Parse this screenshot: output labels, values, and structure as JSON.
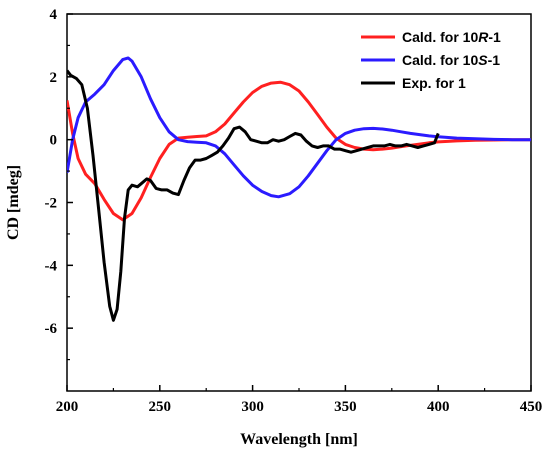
{
  "chart_data": {
    "type": "line",
    "xlabel": "Wavelength [nm]",
    "ylabel": "CD [mdeg]",
    "xlim": [
      200,
      450
    ],
    "ylim": [
      -8,
      4
    ],
    "x_ticks": [
      "200",
      "250",
      "300",
      "350",
      "400",
      "450"
    ],
    "y_ticks": [
      "4",
      "2",
      "0",
      "-2",
      "-4",
      "-6"
    ],
    "grid": false,
    "legend_position": "top-right",
    "series": [
      {
        "name": "Cald. for 10R-1",
        "legend_parts": [
          "Cald. for 10",
          "R",
          "-1"
        ],
        "color": "#ff2020",
        "points": [
          [
            200,
            1.25
          ],
          [
            203,
            0.2
          ],
          [
            206,
            -0.6
          ],
          [
            210,
            -1.1
          ],
          [
            215,
            -1.4
          ],
          [
            220,
            -1.9
          ],
          [
            225,
            -2.35
          ],
          [
            230,
            -2.55
          ],
          [
            235,
            -2.35
          ],
          [
            240,
            -1.85
          ],
          [
            245,
            -1.2
          ],
          [
            250,
            -0.6
          ],
          [
            255,
            -0.15
          ],
          [
            260,
            0.05
          ],
          [
            265,
            0.08
          ],
          [
            270,
            0.1
          ],
          [
            275,
            0.12
          ],
          [
            280,
            0.25
          ],
          [
            285,
            0.5
          ],
          [
            290,
            0.85
          ],
          [
            295,
            1.2
          ],
          [
            300,
            1.5
          ],
          [
            305,
            1.7
          ],
          [
            310,
            1.8
          ],
          [
            315,
            1.83
          ],
          [
            320,
            1.75
          ],
          [
            325,
            1.55
          ],
          [
            330,
            1.2
          ],
          [
            335,
            0.8
          ],
          [
            340,
            0.4
          ],
          [
            345,
            0.05
          ],
          [
            350,
            -0.15
          ],
          [
            355,
            -0.25
          ],
          [
            360,
            -0.3
          ],
          [
            365,
            -0.32
          ],
          [
            370,
            -0.3
          ],
          [
            375,
            -0.27
          ],
          [
            380,
            -0.22
          ],
          [
            385,
            -0.18
          ],
          [
            390,
            -0.14
          ],
          [
            395,
            -0.1
          ],
          [
            400,
            -0.07
          ],
          [
            410,
            -0.04
          ],
          [
            420,
            -0.02
          ],
          [
            430,
            -0.01
          ],
          [
            440,
            0.0
          ],
          [
            450,
            0.0
          ]
        ]
      },
      {
        "name": "Cald. for 10S-1",
        "legend_parts": [
          "Cald. for 10",
          "S",
          "-1"
        ],
        "color": "#2b1bff",
        "points": [
          [
            200,
            -1.05
          ],
          [
            203,
            0.0
          ],
          [
            206,
            0.7
          ],
          [
            210,
            1.2
          ],
          [
            215,
            1.45
          ],
          [
            220,
            1.75
          ],
          [
            225,
            2.2
          ],
          [
            230,
            2.55
          ],
          [
            233,
            2.6
          ],
          [
            235,
            2.5
          ],
          [
            240,
            2.0
          ],
          [
            245,
            1.3
          ],
          [
            250,
            0.7
          ],
          [
            255,
            0.25
          ],
          [
            260,
            0.0
          ],
          [
            265,
            -0.06
          ],
          [
            270,
            -0.08
          ],
          [
            275,
            -0.1
          ],
          [
            280,
            -0.2
          ],
          [
            285,
            -0.45
          ],
          [
            290,
            -0.8
          ],
          [
            295,
            -1.15
          ],
          [
            300,
            -1.45
          ],
          [
            305,
            -1.65
          ],
          [
            310,
            -1.78
          ],
          [
            314,
            -1.82
          ],
          [
            320,
            -1.72
          ],
          [
            325,
            -1.5
          ],
          [
            330,
            -1.15
          ],
          [
            335,
            -0.75
          ],
          [
            340,
            -0.35
          ],
          [
            345,
            0.0
          ],
          [
            350,
            0.2
          ],
          [
            355,
            0.3
          ],
          [
            360,
            0.35
          ],
          [
            365,
            0.36
          ],
          [
            370,
            0.34
          ],
          [
            375,
            0.3
          ],
          [
            380,
            0.25
          ],
          [
            385,
            0.2
          ],
          [
            390,
            0.16
          ],
          [
            395,
            0.12
          ],
          [
            400,
            0.09
          ],
          [
            410,
            0.05
          ],
          [
            420,
            0.03
          ],
          [
            430,
            0.01
          ],
          [
            440,
            0.0
          ],
          [
            450,
            0.0
          ]
        ]
      },
      {
        "name": "Exp. for 1",
        "legend_parts": [
          "Exp. for 1",
          "",
          ""
        ],
        "color": "#000000",
        "points": [
          [
            200,
            2.2
          ],
          [
            202,
            2.05
          ],
          [
            205,
            1.95
          ],
          [
            208,
            1.75
          ],
          [
            211,
            1.0
          ],
          [
            214,
            -0.5
          ],
          [
            217,
            -2.2
          ],
          [
            220,
            -3.9
          ],
          [
            223,
            -5.3
          ],
          [
            225,
            -5.75
          ],
          [
            227,
            -5.4
          ],
          [
            229,
            -4.2
          ],
          [
            231,
            -2.5
          ],
          [
            233,
            -1.6
          ],
          [
            235,
            -1.45
          ],
          [
            238,
            -1.5
          ],
          [
            240,
            -1.4
          ],
          [
            243,
            -1.25
          ],
          [
            245,
            -1.3
          ],
          [
            248,
            -1.55
          ],
          [
            251,
            -1.6
          ],
          [
            254,
            -1.6
          ],
          [
            257,
            -1.7
          ],
          [
            260,
            -1.75
          ],
          [
            263,
            -1.3
          ],
          [
            266,
            -0.9
          ],
          [
            269,
            -0.65
          ],
          [
            272,
            -0.65
          ],
          [
            275,
            -0.6
          ],
          [
            278,
            -0.5
          ],
          [
            281,
            -0.4
          ],
          [
            284,
            -0.2
          ],
          [
            287,
            0.05
          ],
          [
            290,
            0.35
          ],
          [
            293,
            0.4
          ],
          [
            296,
            0.25
          ],
          [
            299,
            0.0
          ],
          [
            302,
            -0.05
          ],
          [
            305,
            -0.1
          ],
          [
            308,
            -0.1
          ],
          [
            311,
            0.0
          ],
          [
            314,
            -0.05
          ],
          [
            317,
            0.0
          ],
          [
            320,
            0.1
          ],
          [
            323,
            0.2
          ],
          [
            326,
            0.15
          ],
          [
            329,
            -0.05
          ],
          [
            332,
            -0.2
          ],
          [
            335,
            -0.25
          ],
          [
            338,
            -0.2
          ],
          [
            341,
            -0.2
          ],
          [
            344,
            -0.3
          ],
          [
            347,
            -0.3
          ],
          [
            350,
            -0.35
          ],
          [
            353,
            -0.4
          ],
          [
            356,
            -0.35
          ],
          [
            359,
            -0.3
          ],
          [
            362,
            -0.25
          ],
          [
            365,
            -0.2
          ],
          [
            368,
            -0.2
          ],
          [
            371,
            -0.2
          ],
          [
            374,
            -0.15
          ],
          [
            377,
            -0.2
          ],
          [
            380,
            -0.2
          ],
          [
            383,
            -0.15
          ],
          [
            386,
            -0.2
          ],
          [
            389,
            -0.25
          ],
          [
            392,
            -0.2
          ],
          [
            395,
            -0.15
          ],
          [
            398,
            -0.1
          ],
          [
            400,
            0.2
          ]
        ]
      }
    ]
  }
}
